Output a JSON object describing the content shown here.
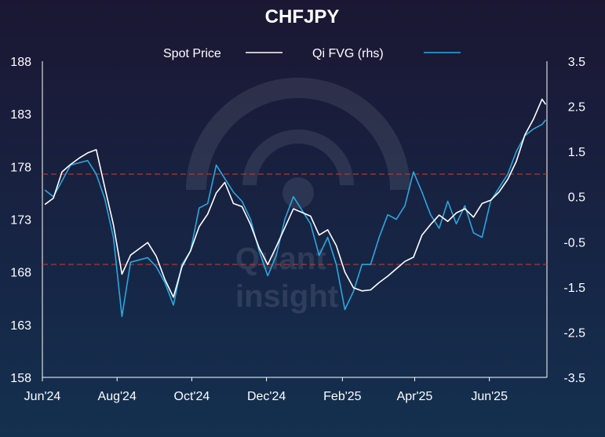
{
  "chart_data": {
    "type": "line",
    "title": "CHFJPY",
    "legend": {
      "placement": "top-center",
      "entries": [
        "Spot Price",
        "Qi FVG  (rhs)"
      ]
    },
    "x_tick_labels": [
      "Jun'24",
      "Aug'24",
      "Oct'24",
      "Dec'24",
      "Feb'25",
      "Apr'25",
      "Jun'25"
    ],
    "x_range": [
      "2024-06-01",
      "2025-07-18"
    ],
    "y_left": {
      "lim": [
        158,
        188
      ],
      "ticks": [
        "188",
        "183",
        "178",
        "173",
        "168",
        "163",
        "158"
      ]
    },
    "y_right": {
      "lim": [
        -3.5,
        3.5
      ],
      "ticks": [
        "3.5",
        "2.5",
        "1.5",
        "0.5",
        "-0.5",
        "-1.5",
        "-2.5",
        "-3.5"
      ]
    },
    "reference_lines": {
      "axis": "right",
      "values": [
        1,
        -1
      ],
      "color": "#c0392b",
      "style": "dashed"
    },
    "series": [
      {
        "name": "Spot Price",
        "axis": "left",
        "color": "#ffffff",
        "points": [
          [
            "2024-06-03",
            174.4
          ],
          [
            "2024-06-10",
            175.0
          ],
          [
            "2024-06-17",
            177.5
          ],
          [
            "2024-06-24",
            178.2
          ],
          [
            "2024-07-01",
            178.8
          ],
          [
            "2024-07-08",
            179.3
          ],
          [
            "2024-07-15",
            179.6
          ],
          [
            "2024-07-22",
            176.0
          ],
          [
            "2024-07-29",
            172.5
          ],
          [
            "2024-08-05",
            167.8
          ],
          [
            "2024-08-12",
            169.6
          ],
          [
            "2024-08-19",
            170.2
          ],
          [
            "2024-08-26",
            170.8
          ],
          [
            "2024-09-02",
            169.5
          ],
          [
            "2024-09-09",
            167.3
          ],
          [
            "2024-09-16",
            165.6
          ],
          [
            "2024-09-23",
            168.5
          ],
          [
            "2024-09-30",
            170.0
          ],
          [
            "2024-10-07",
            172.3
          ],
          [
            "2024-10-14",
            173.5
          ],
          [
            "2024-10-21",
            175.5
          ],
          [
            "2024-10-28",
            176.5
          ],
          [
            "2024-11-04",
            174.5
          ],
          [
            "2024-11-11",
            174.2
          ],
          [
            "2024-11-18",
            172.5
          ],
          [
            "2024-11-25",
            170.3
          ],
          [
            "2024-12-02",
            168.7
          ],
          [
            "2024-12-09",
            170.4
          ],
          [
            "2024-12-16",
            172.2
          ],
          [
            "2024-12-23",
            174.0
          ],
          [
            "2025-01-06",
            173.3
          ],
          [
            "2025-01-13",
            171.5
          ],
          [
            "2025-01-20",
            172.0
          ],
          [
            "2025-01-27",
            170.5
          ],
          [
            "2025-02-03",
            168.0
          ],
          [
            "2025-02-10",
            166.5
          ],
          [
            "2025-02-17",
            166.2
          ],
          [
            "2025-02-24",
            166.3
          ],
          [
            "2025-03-03",
            167.0
          ],
          [
            "2025-03-10",
            167.6
          ],
          [
            "2025-03-17",
            168.3
          ],
          [
            "2025-03-24",
            169.0
          ],
          [
            "2025-03-31",
            169.4
          ],
          [
            "2025-04-07",
            171.5
          ],
          [
            "2025-04-14",
            172.5
          ],
          [
            "2025-04-21",
            173.4
          ],
          [
            "2025-04-28",
            172.8
          ],
          [
            "2025-05-05",
            173.6
          ],
          [
            "2025-05-12",
            174.0
          ],
          [
            "2025-05-19",
            173.2
          ],
          [
            "2025-05-26",
            174.5
          ],
          [
            "2025-06-02",
            174.8
          ],
          [
            "2025-06-09",
            175.6
          ],
          [
            "2025-06-16",
            176.8
          ],
          [
            "2025-06-23",
            178.5
          ],
          [
            "2025-06-30",
            181.0
          ],
          [
            "2025-07-07",
            182.5
          ],
          [
            "2025-07-14",
            184.4
          ],
          [
            "2025-07-17",
            183.9
          ]
        ]
      },
      {
        "name": "Qi FVG  (rhs)",
        "axis": "right",
        "color": "#29a8e0",
        "points": [
          [
            "2024-06-03",
            0.65
          ],
          [
            "2024-06-10",
            0.5
          ],
          [
            "2024-06-17",
            0.85
          ],
          [
            "2024-06-24",
            1.2
          ],
          [
            "2024-07-01",
            1.25
          ],
          [
            "2024-07-08",
            1.3
          ],
          [
            "2024-07-15",
            1.0
          ],
          [
            "2024-07-22",
            0.45
          ],
          [
            "2024-07-29",
            -0.4
          ],
          [
            "2024-08-05",
            -2.15
          ],
          [
            "2024-08-12",
            -0.95
          ],
          [
            "2024-08-19",
            -0.9
          ],
          [
            "2024-08-26",
            -0.85
          ],
          [
            "2024-09-02",
            -1.05
          ],
          [
            "2024-09-09",
            -1.4
          ],
          [
            "2024-09-16",
            -1.9
          ],
          [
            "2024-09-23",
            -1.0
          ],
          [
            "2024-09-30",
            -0.7
          ],
          [
            "2024-10-07",
            0.25
          ],
          [
            "2024-10-14",
            0.35
          ],
          [
            "2024-10-21",
            1.2
          ],
          [
            "2024-10-28",
            0.9
          ],
          [
            "2024-11-04",
            0.6
          ],
          [
            "2024-11-11",
            0.4
          ],
          [
            "2024-11-18",
            0.0
          ],
          [
            "2024-11-25",
            -0.7
          ],
          [
            "2024-12-02",
            -1.25
          ],
          [
            "2024-12-09",
            -0.8
          ],
          [
            "2024-12-16",
            0.0
          ],
          [
            "2024-12-23",
            0.5
          ],
          [
            "2025-01-06",
            -0.1
          ],
          [
            "2025-01-13",
            -0.8
          ],
          [
            "2025-01-20",
            -0.4
          ],
          [
            "2025-01-27",
            -1.0
          ],
          [
            "2025-02-03",
            -2.0
          ],
          [
            "2025-02-10",
            -1.6
          ],
          [
            "2025-02-17",
            -1.0
          ],
          [
            "2025-02-24",
            -1.0
          ],
          [
            "2025-03-03",
            -0.4
          ],
          [
            "2025-03-10",
            0.1
          ],
          [
            "2025-03-17",
            0.0
          ],
          [
            "2025-03-24",
            0.3
          ],
          [
            "2025-03-31",
            1.05
          ],
          [
            "2025-04-07",
            0.6
          ],
          [
            "2025-04-14",
            0.1
          ],
          [
            "2025-04-21",
            -0.2
          ],
          [
            "2025-04-28",
            0.4
          ],
          [
            "2025-05-05",
            -0.1
          ],
          [
            "2025-05-12",
            0.3
          ],
          [
            "2025-05-19",
            -0.3
          ],
          [
            "2025-05-26",
            -0.4
          ],
          [
            "2025-06-02",
            0.4
          ],
          [
            "2025-06-09",
            0.7
          ],
          [
            "2025-06-16",
            1.0
          ],
          [
            "2025-06-23",
            1.5
          ],
          [
            "2025-06-30",
            1.85
          ],
          [
            "2025-07-07",
            2.0
          ],
          [
            "2025-07-14",
            2.1
          ],
          [
            "2025-07-17",
            2.2
          ]
        ]
      }
    ]
  }
}
